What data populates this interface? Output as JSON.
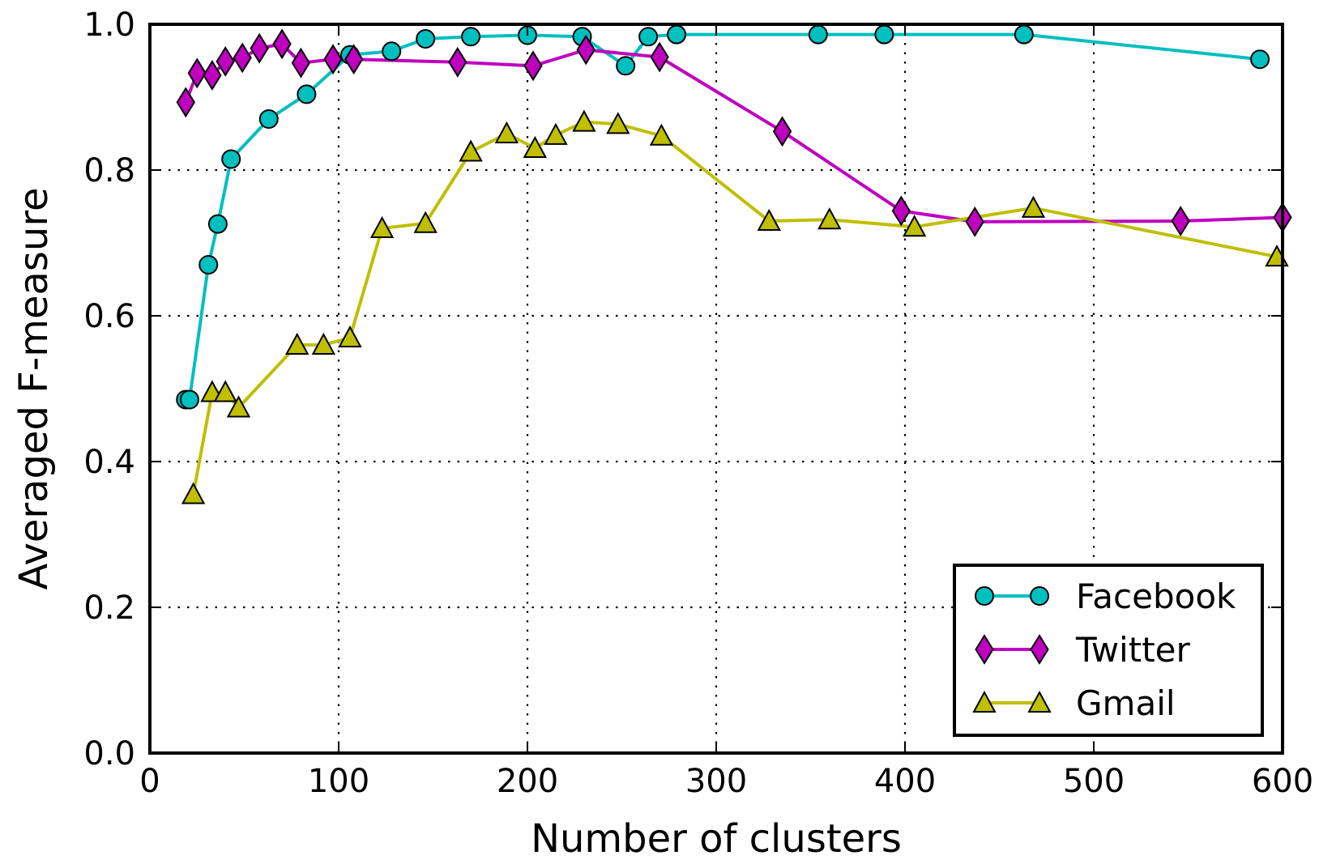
{
  "chart_data": {
    "type": "line",
    "title": "",
    "xlabel": "Number of clusters",
    "ylabel": "Averaged F-measure",
    "xlim": [
      0,
      600
    ],
    "ylim": [
      0.0,
      1.0
    ],
    "xticks": [
      0,
      100,
      200,
      300,
      400,
      500,
      600
    ],
    "yticks": [
      0.0,
      0.2,
      0.4,
      0.6,
      0.8,
      1.0
    ],
    "xtick_labels": [
      "0",
      "100",
      "200",
      "300",
      "400",
      "500",
      "600"
    ],
    "ytick_labels": [
      "0.0",
      "0.2",
      "0.4",
      "0.6",
      "0.8",
      "1.0"
    ],
    "grid": true,
    "legend_position": "bottom-right",
    "series": [
      {
        "name": "Facebook",
        "color": "#00bfbf",
        "marker": "circle",
        "x": [
          19,
          21,
          31,
          36,
          43,
          63,
          83,
          106,
          128,
          146,
          170,
          200,
          229,
          252,
          264,
          279,
          354,
          389,
          463,
          588
        ],
        "y": [
          0.485,
          0.485,
          0.67,
          0.726,
          0.815,
          0.87,
          0.904,
          0.958,
          0.963,
          0.98,
          0.983,
          0.985,
          0.983,
          0.943,
          0.983,
          0.986,
          0.986,
          0.986,
          0.986,
          0.952
        ]
      },
      {
        "name": "Twitter",
        "color": "#bf00bf",
        "marker": "diamond",
        "x": [
          19,
          25,
          33,
          40,
          49,
          58,
          70,
          80,
          97,
          108,
          163,
          203,
          231,
          270,
          335,
          398,
          437,
          546,
          600
        ],
        "y": [
          0.893,
          0.933,
          0.93,
          0.949,
          0.954,
          0.967,
          0.973,
          0.947,
          0.952,
          0.952,
          0.948,
          0.943,
          0.965,
          0.955,
          0.853,
          0.744,
          0.729,
          0.73,
          0.735
        ]
      },
      {
        "name": "Gmail",
        "color": "#bfbf00",
        "marker": "triangle",
        "x": [
          23,
          33,
          40,
          47,
          78,
          92,
          106,
          123,
          146,
          170,
          189,
          204,
          215,
          230,
          248,
          271,
          328,
          360,
          405,
          468,
          597
        ],
        "y": [
          0.355,
          0.495,
          0.495,
          0.474,
          0.56,
          0.56,
          0.57,
          0.72,
          0.727,
          0.825,
          0.85,
          0.83,
          0.848,
          0.866,
          0.863,
          0.847,
          0.73,
          0.732,
          0.722,
          0.748,
          0.681
        ]
      }
    ]
  }
}
